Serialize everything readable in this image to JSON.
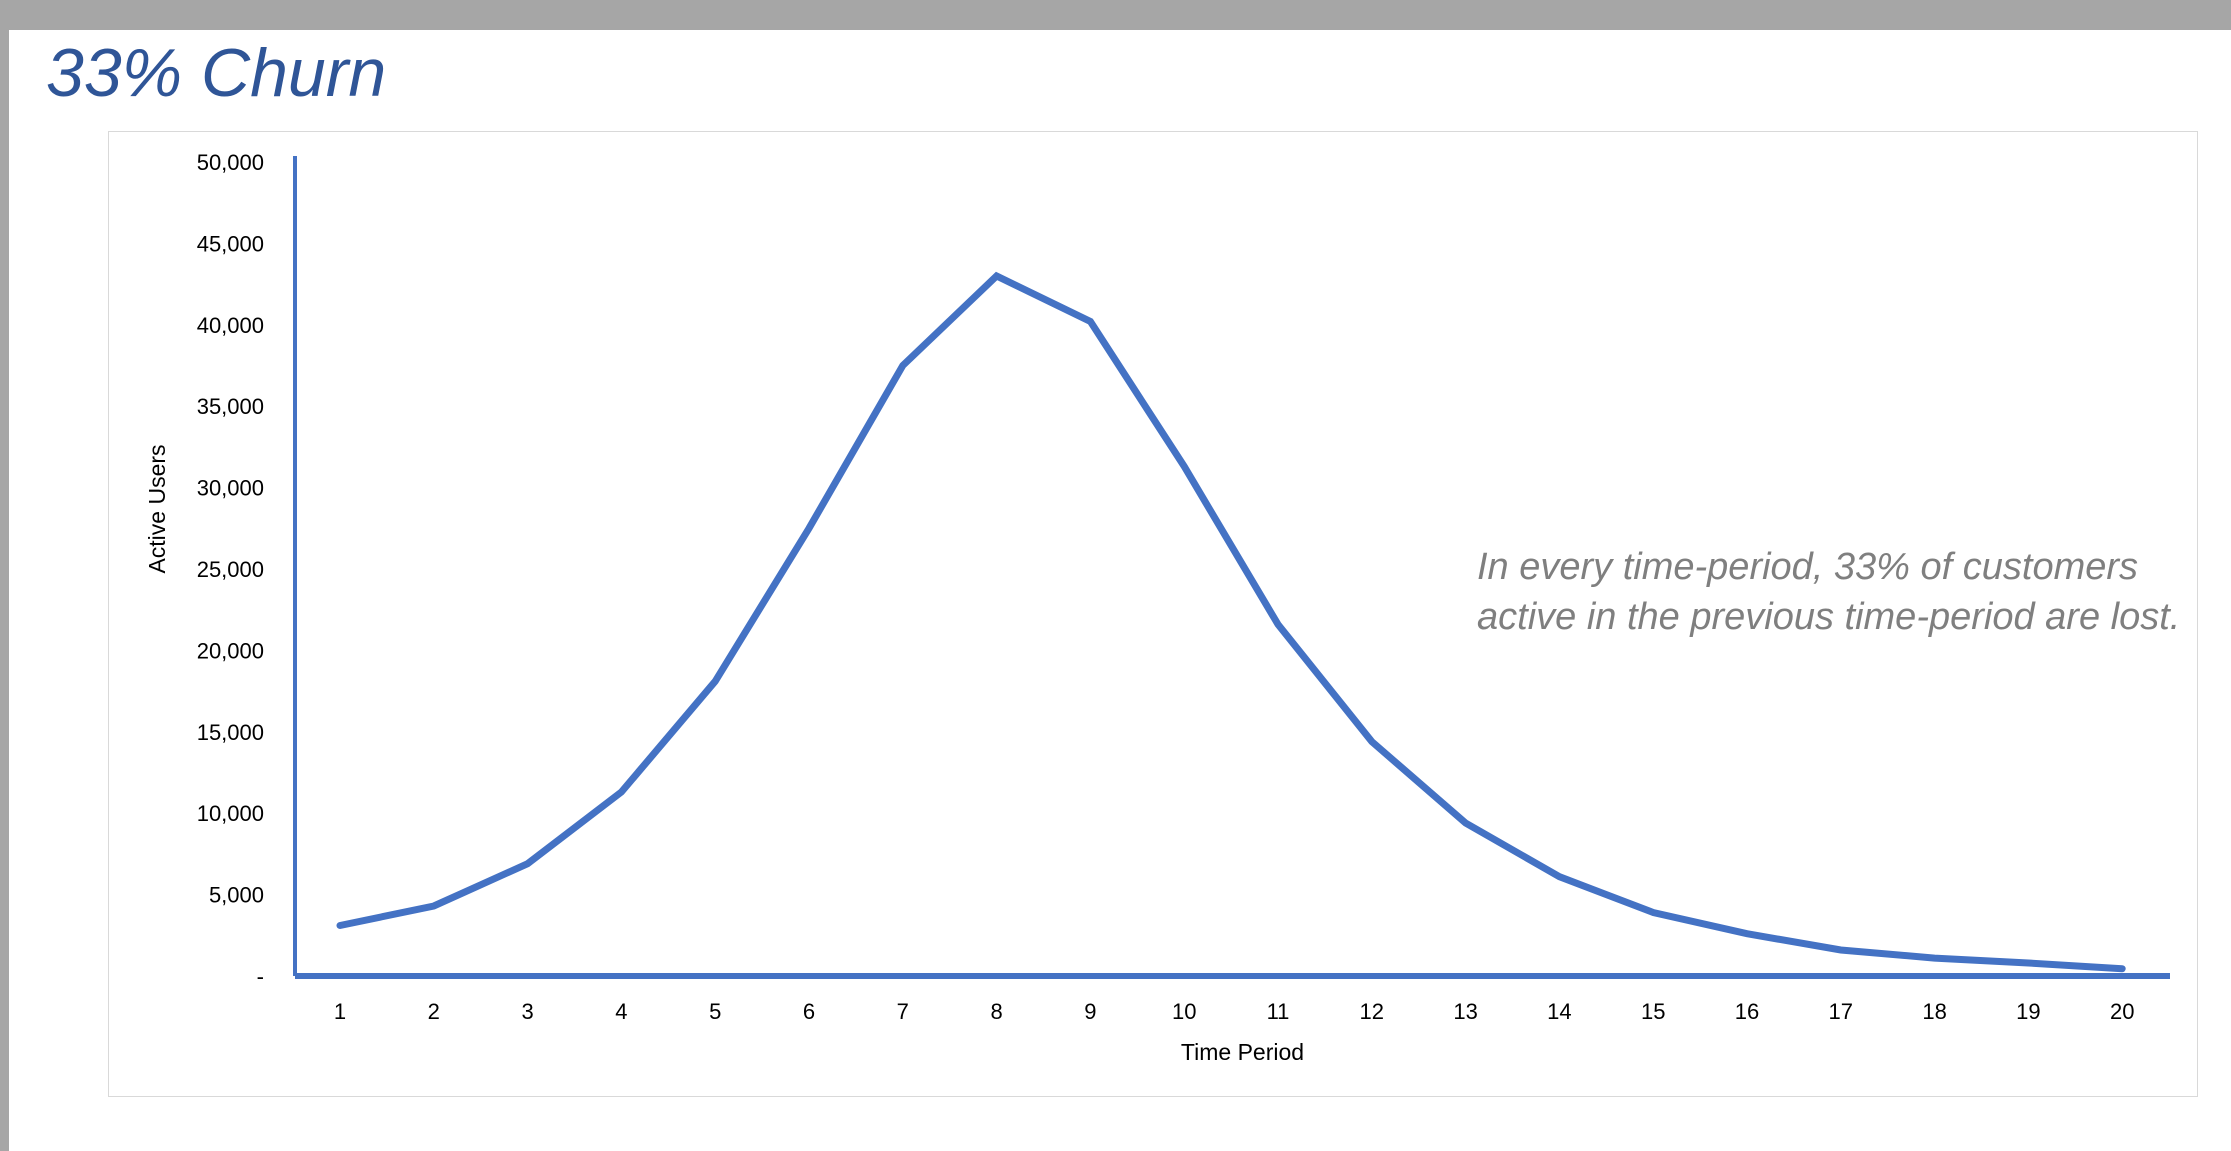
{
  "slide": {
    "title": "33% Churn",
    "annotation_line1": "In every time-period, 33% of customers",
    "annotation_line2": "active in the previous time-period are lost."
  },
  "colors": {
    "title": "#2f5597",
    "line": "#4472c4",
    "axis": "#4472c4",
    "annotation": "#7f7f7f",
    "frame": "#d9d9d9"
  },
  "chart_data": {
    "type": "line",
    "title": "",
    "xlabel": "Time Period",
    "ylabel": "Active Users",
    "ylim": [
      0,
      50000
    ],
    "grid": false,
    "legend": "none",
    "categories": [
      "1",
      "2",
      "3",
      "4",
      "5",
      "6",
      "7",
      "8",
      "9",
      "10",
      "11",
      "12",
      "13",
      "14",
      "15",
      "16",
      "17",
      "18",
      "19",
      "20"
    ],
    "y_ticks": [
      0,
      5000,
      10000,
      15000,
      20000,
      25000,
      30000,
      35000,
      40000,
      45000,
      50000
    ],
    "y_tick_labels": [
      "-",
      "5,000",
      "10,000",
      "15,000",
      "20,000",
      "25,000",
      "30,000",
      "35,000",
      "40,000",
      "45,000",
      "50,000"
    ],
    "series": [
      {
        "values": [
          3100,
          4300,
          6900,
          11300,
          18100,
          27500,
          37500,
          43000,
          40200,
          31300,
          21600,
          14400,
          9400,
          6100,
          3900,
          2600,
          1600,
          1100,
          800,
          450
        ]
      }
    ]
  }
}
